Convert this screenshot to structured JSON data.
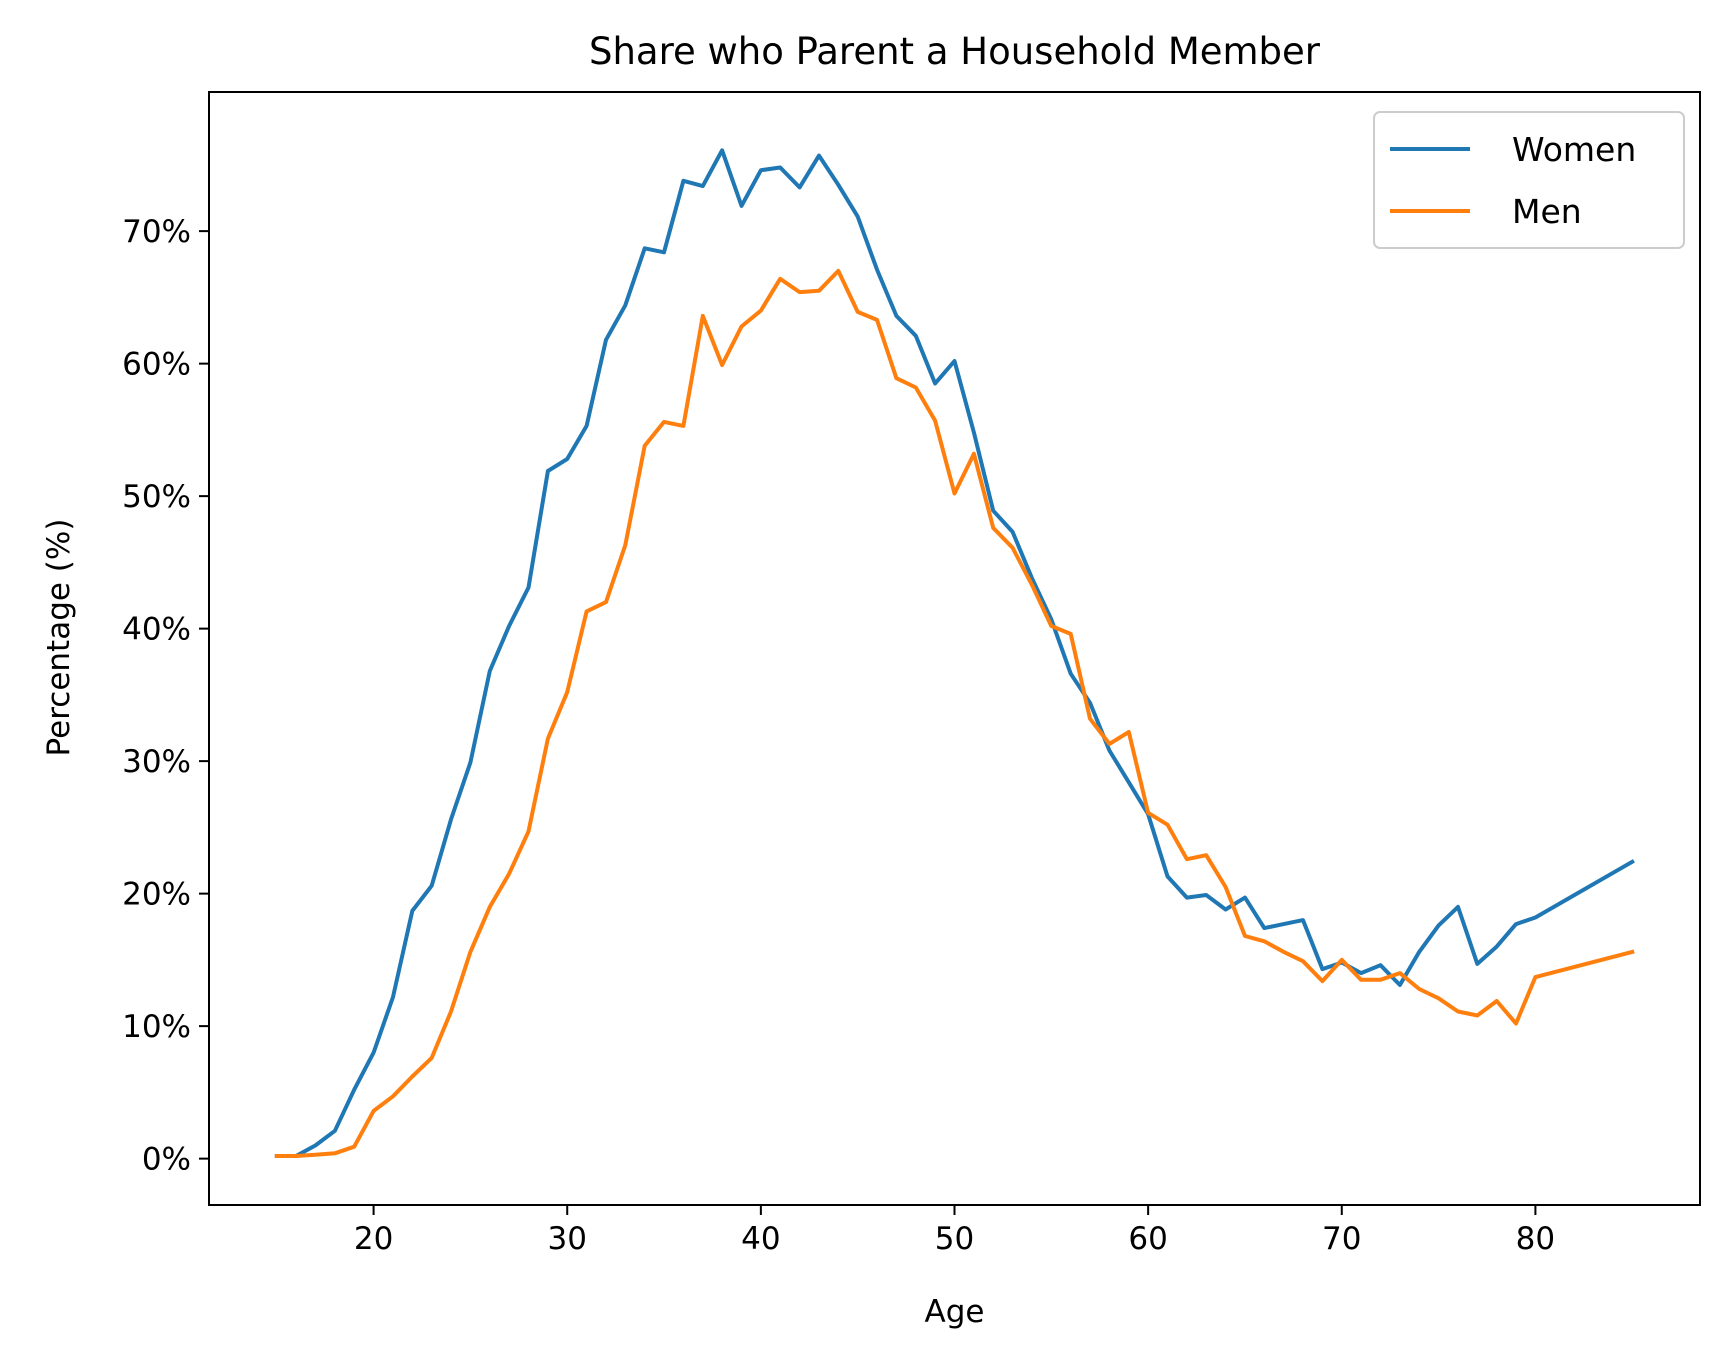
{
  "chart_data": {
    "type": "line",
    "title": "Share who Parent a Household Member",
    "xlabel": "Age",
    "ylabel": "Percentage (%)",
    "xlim": [
      11.5,
      88.5
    ],
    "ylim": [
      -3.5,
      80.5
    ],
    "xticks": [
      20,
      30,
      40,
      50,
      60,
      70,
      80
    ],
    "yticks": [
      0,
      10,
      20,
      30,
      40,
      50,
      60,
      70
    ],
    "ytick_suffix": "%",
    "grid": false,
    "legend_position": "top-right",
    "x": [
      15,
      16,
      17,
      18,
      19,
      20,
      21,
      22,
      23,
      24,
      25,
      26,
      27,
      28,
      29,
      30,
      31,
      32,
      33,
      34,
      35,
      36,
      37,
      38,
      39,
      40,
      41,
      42,
      43,
      44,
      45,
      46,
      47,
      48,
      49,
      50,
      51,
      52,
      53,
      54,
      55,
      56,
      57,
      58,
      59,
      60,
      61,
      62,
      63,
      64,
      65,
      66,
      67,
      68,
      69,
      70,
      71,
      72,
      73,
      74,
      75,
      76,
      77,
      78,
      79,
      80,
      85
    ],
    "series": [
      {
        "name": "Women",
        "color": "#1f77b4",
        "values": [
          0.2,
          0.2,
          1.0,
          2.1,
          5.2,
          8.0,
          12.2,
          18.7,
          20.6,
          25.6,
          29.9,
          36.8,
          40.2,
          43.1,
          51.9,
          52.8,
          55.3,
          61.8,
          64.4,
          68.7,
          68.4,
          73.8,
          73.4,
          76.1,
          71.9,
          74.6,
          74.8,
          73.3,
          75.7,
          73.5,
          71.1,
          67.1,
          63.6,
          62.1,
          58.5,
          60.2,
          54.8,
          48.9,
          47.3,
          43.8,
          40.7,
          36.6,
          34.4,
          30.8,
          28.4,
          26.0,
          21.3,
          19.7,
          19.9,
          18.8,
          19.7,
          17.4,
          17.7,
          18.0,
          14.3,
          14.8,
          14.0,
          14.6,
          13.1,
          15.6,
          17.6,
          19.0,
          14.7,
          16.0,
          17.7,
          18.2,
          22.4
        ]
      },
      {
        "name": "Men",
        "color": "#ff7f0e",
        "values": [
          0.2,
          0.2,
          0.3,
          0.4,
          0.9,
          3.6,
          4.7,
          6.2,
          7.6,
          11.1,
          15.6,
          19.0,
          21.5,
          24.7,
          31.7,
          35.2,
          41.3,
          42.0,
          46.3,
          53.8,
          55.6,
          55.3,
          63.6,
          59.9,
          62.8,
          64.0,
          66.4,
          65.4,
          65.5,
          67.0,
          63.9,
          63.3,
          58.9,
          58.2,
          55.7,
          50.2,
          53.2,
          47.6,
          46.1,
          43.3,
          40.2,
          39.6,
          33.2,
          31.3,
          32.2,
          26.1,
          25.2,
          22.6,
          22.9,
          20.5,
          16.8,
          16.4,
          15.6,
          14.9,
          13.4,
          15.0,
          13.5,
          13.5,
          14.0,
          12.8,
          12.1,
          11.1,
          10.8,
          11.9,
          10.2,
          13.7,
          15.6
        ]
      }
    ]
  }
}
